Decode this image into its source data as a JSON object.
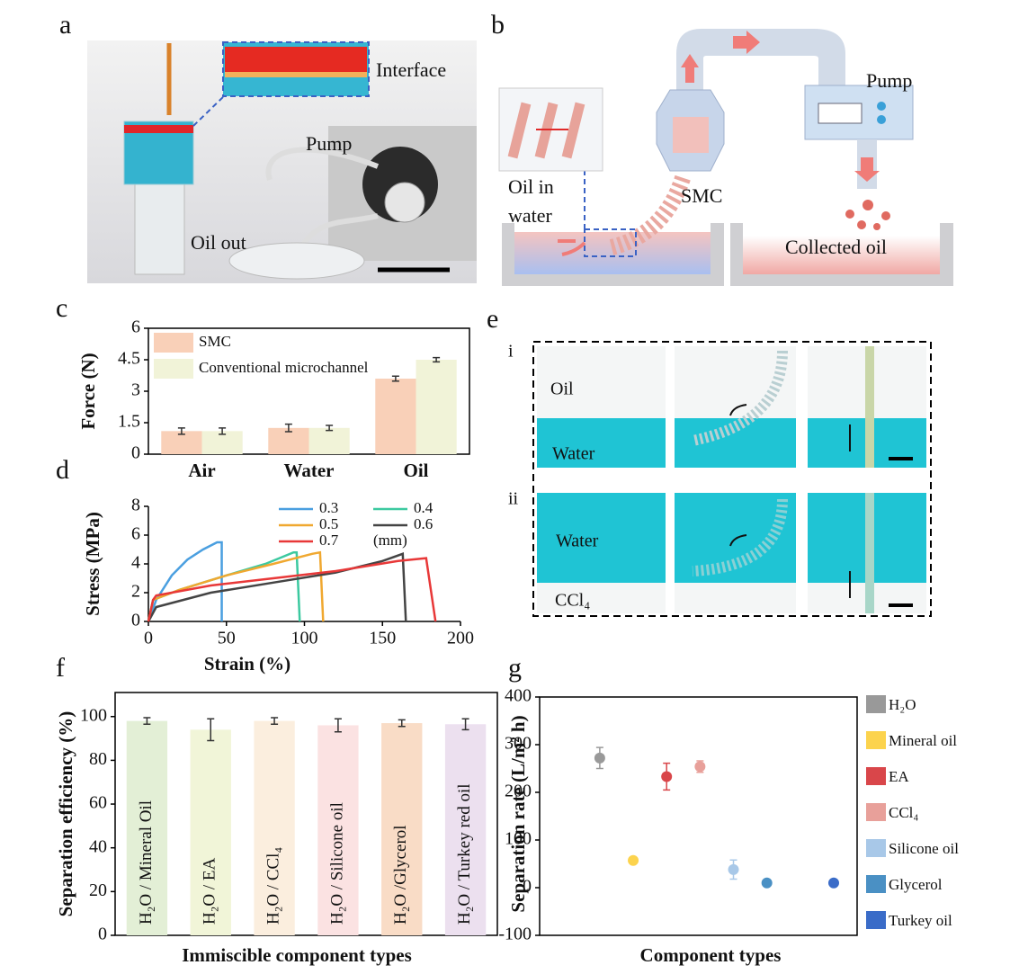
{
  "panel_labels": [
    "a",
    "b",
    "c",
    "d",
    "e",
    "f",
    "g"
  ],
  "photo_a": {
    "labels": [
      "Interface",
      "Pump",
      "Oil out"
    ]
  },
  "diagram_b": {
    "labels": [
      "Pump",
      "Oil in",
      "water",
      "SMC",
      "Collected oil"
    ]
  },
  "photo_e": {
    "rows": [
      "i",
      "ii"
    ],
    "labels": [
      "Oil",
      "Water",
      "Water",
      "CCl₄"
    ]
  },
  "chart_data": [
    {
      "type": "bar",
      "y_label": "Force (N)",
      "categories": [
        "Air",
        "Water",
        "Oil"
      ],
      "series": [
        {
          "name": "SMC",
          "color": "#f9d0b8",
          "values": [
            1.1,
            1.25,
            3.6
          ],
          "errors": [
            0.15,
            0.18,
            0.12
          ]
        },
        {
          "name": "Conventional microchannel",
          "color": "#f1f3d8",
          "values": [
            1.1,
            1.25,
            4.5
          ],
          "errors": [
            0.15,
            0.12,
            0.1
          ]
        }
      ],
      "ylim": [
        0,
        6
      ],
      "yticks": [
        0,
        1.5,
        3,
        4.5,
        6
      ]
    },
    {
      "type": "line",
      "x_label": "Strain (%)",
      "y_label": "Stress (MPa)",
      "annotation": "(mm)",
      "series": [
        {
          "name": "0.3",
          "color": "#4a9fe0",
          "x": [
            0,
            5,
            15,
            25,
            35,
            44,
            47,
            47
          ],
          "values": [
            0,
            1.5,
            3.2,
            4.3,
            5.0,
            5.5,
            5.5,
            0
          ]
        },
        {
          "name": "0.4",
          "color": "#3cc9a0",
          "x": [
            0,
            3,
            20,
            50,
            75,
            93,
            95,
            97
          ],
          "values": [
            0,
            1.5,
            2.2,
            3.2,
            4.0,
            4.8,
            4.8,
            0
          ]
        },
        {
          "name": "0.5",
          "color": "#f0a830",
          "x": [
            0,
            3,
            20,
            50,
            80,
            105,
            110,
            112
          ],
          "values": [
            0,
            1.5,
            2.2,
            3.2,
            4.0,
            4.7,
            4.8,
            0
          ]
        },
        {
          "name": "0.6",
          "color": "#444444",
          "x": [
            0,
            5,
            40,
            80,
            120,
            150,
            163,
            165
          ],
          "values": [
            0,
            1.0,
            2.0,
            2.7,
            3.4,
            4.2,
            4.7,
            0
          ]
        },
        {
          "name": "0.7",
          "color": "#e83838",
          "x": [
            0,
            3,
            5,
            40,
            80,
            120,
            160,
            178,
            184
          ],
          "values": [
            0,
            1.5,
            1.8,
            2.5,
            3.0,
            3.5,
            4.2,
            4.4,
            0
          ]
        }
      ],
      "xlim": [
        0,
        200
      ],
      "xticks": [
        0,
        50,
        100,
        150,
        200
      ],
      "ylim": [
        0,
        8
      ],
      "yticks": [
        0,
        2,
        4,
        6,
        8
      ]
    },
    {
      "type": "bar",
      "x_label": "Immiscible component types",
      "y_label": "Separation efficiency (%)",
      "categories": [
        "H₂O / Mineral Oil",
        "H₂O / EA",
        "H₂O / CCl₄",
        "H₂O / Silicone oil",
        "H₂O /Glycerol",
        "H₂O / Turkey red oil"
      ],
      "values": [
        98,
        94,
        98,
        96,
        97,
        96.5
      ],
      "errors": [
        1.5,
        5,
        1.5,
        3,
        1.5,
        2.5
      ],
      "colors": [
        "#e3efd6",
        "#f1f5d8",
        "#fbeede",
        "#fbe2e2",
        "#f9dcc6",
        "#ece0ef"
      ],
      "ylim": [
        0,
        111
      ],
      "yticks": [
        0,
        20,
        40,
        60,
        80,
        100
      ]
    },
    {
      "type": "scatter",
      "x_label": "Component types",
      "y_label": "Separation rate (L/m² h)",
      "series": [
        {
          "name": "H₂O",
          "color": "#999999",
          "x": [
            1
          ],
          "values": [
            272
          ],
          "errors": [
            22
          ]
        },
        {
          "name": "Mineral oil",
          "color": "#fcd34d",
          "x": [
            2
          ],
          "values": [
            57
          ],
          "errors": [
            4
          ]
        },
        {
          "name": "EA",
          "color": "#d9464a",
          "x": [
            3
          ],
          "values": [
            233
          ],
          "errors": [
            28
          ]
        },
        {
          "name": "CCl₄",
          "color": "#e8a09a",
          "x": [
            4
          ],
          "values": [
            254
          ],
          "errors": [
            12
          ]
        },
        {
          "name": "Silicone oil",
          "color": "#a8c8e8",
          "x": [
            5
          ],
          "values": [
            38
          ],
          "errors": [
            20
          ]
        },
        {
          "name": "Glycerol",
          "color": "#4a90c4",
          "x": [
            6
          ],
          "values": [
            10
          ],
          "errors": [
            3
          ]
        },
        {
          "name": "Turkey  oil",
          "color": "#3a6cc8",
          "x": [
            8
          ],
          "values": [
            10
          ],
          "errors": [
            3
          ]
        }
      ],
      "xlim": [
        -0.8,
        8.7
      ],
      "ylim": [
        -100,
        400
      ],
      "yticks": [
        -100,
        0,
        100,
        200,
        300,
        400
      ]
    }
  ]
}
